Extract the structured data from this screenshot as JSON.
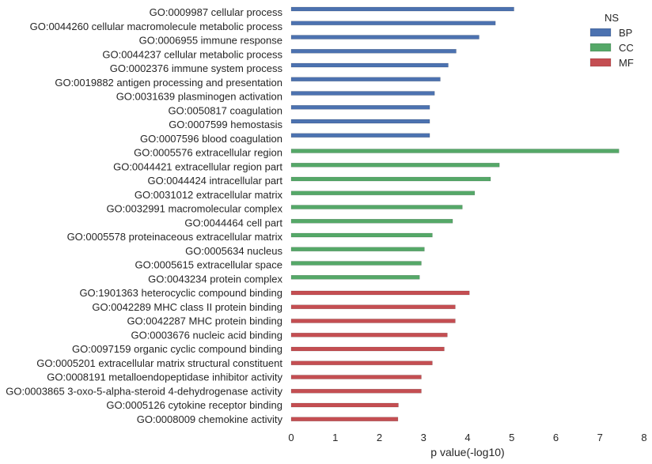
{
  "chart_data": {
    "type": "bar",
    "orientation": "horizontal",
    "xlabel": "p value(-log10)",
    "xlim": [
      0,
      8
    ],
    "xticks": [
      0,
      1,
      2,
      3,
      4,
      5,
      6,
      7,
      8
    ],
    "grid": false,
    "legend": {
      "title": "NS",
      "placement": "top-right",
      "entries": [
        {
          "name": "BP",
          "color": "#4c72b0"
        },
        {
          "name": "CC",
          "color": "#55a868"
        },
        {
          "name": "MF",
          "color": "#c44e52"
        }
      ]
    },
    "categories": [
      {
        "label": "GO:0009987 cellular process",
        "value": 5.05,
        "group": "BP"
      },
      {
        "label": "GO:0044260 cellular macromolecule metabolic process",
        "value": 4.63,
        "group": "BP"
      },
      {
        "label": "GO:0006955 immune response",
        "value": 4.26,
        "group": "BP"
      },
      {
        "label": "GO:0044237 cellular metabolic process",
        "value": 3.74,
        "group": "BP"
      },
      {
        "label": "GO:0002376 immune system process",
        "value": 3.56,
        "group": "BP"
      },
      {
        "label": "GO:0019882 antigen processing and presentation",
        "value": 3.38,
        "group": "BP"
      },
      {
        "label": "GO:0031639 plasminogen activation",
        "value": 3.25,
        "group": "BP"
      },
      {
        "label": "GO:0050817 coagulation",
        "value": 3.14,
        "group": "BP"
      },
      {
        "label": "GO:0007599 hemostasis",
        "value": 3.14,
        "group": "BP"
      },
      {
        "label": "GO:0007596 blood coagulation",
        "value": 3.14,
        "group": "BP"
      },
      {
        "label": "GO:0005576 extracellular region",
        "value": 7.43,
        "group": "CC"
      },
      {
        "label": "GO:0044421 extracellular region part",
        "value": 4.72,
        "group": "CC"
      },
      {
        "label": "GO:0044424 intracellular part",
        "value": 4.52,
        "group": "CC"
      },
      {
        "label": "GO:0031012 extracellular matrix",
        "value": 4.16,
        "group": "CC"
      },
      {
        "label": "GO:0032991 macromolecular complex",
        "value": 3.88,
        "group": "CC"
      },
      {
        "label": "GO:0044464 cell part",
        "value": 3.66,
        "group": "CC"
      },
      {
        "label": "GO:0005578 proteinaceous extracellular matrix",
        "value": 3.2,
        "group": "CC"
      },
      {
        "label": "GO:0005634 nucleus",
        "value": 3.02,
        "group": "CC"
      },
      {
        "label": "GO:0005615 extracellular space",
        "value": 2.95,
        "group": "CC"
      },
      {
        "label": "GO:0043234 protein complex",
        "value": 2.91,
        "group": "CC"
      },
      {
        "label": "GO:1901363 heterocyclic compound binding",
        "value": 4.04,
        "group": "MF"
      },
      {
        "label": "GO:0042289 MHC class II protein binding",
        "value": 3.72,
        "group": "MF"
      },
      {
        "label": "GO:0042287 MHC protein binding",
        "value": 3.72,
        "group": "MF"
      },
      {
        "label": "GO:0003676 nucleic acid binding",
        "value": 3.54,
        "group": "MF"
      },
      {
        "label": "GO:0097159 organic cyclic compound binding",
        "value": 3.47,
        "group": "MF"
      },
      {
        "label": "GO:0005201 extracellular matrix structural constituent",
        "value": 3.2,
        "group": "MF"
      },
      {
        "label": "GO:0008191 metalloendopeptidase inhibitor activity",
        "value": 2.95,
        "group": "MF"
      },
      {
        "label": "GO:0003865 3-oxo-5-alpha-steroid 4-dehydrogenase activity",
        "value": 2.95,
        "group": "MF"
      },
      {
        "label": "GO:0005126 cytokine receptor binding",
        "value": 2.43,
        "group": "MF"
      },
      {
        "label": "GO:0008009 chemokine activity",
        "value": 2.42,
        "group": "MF"
      }
    ]
  }
}
